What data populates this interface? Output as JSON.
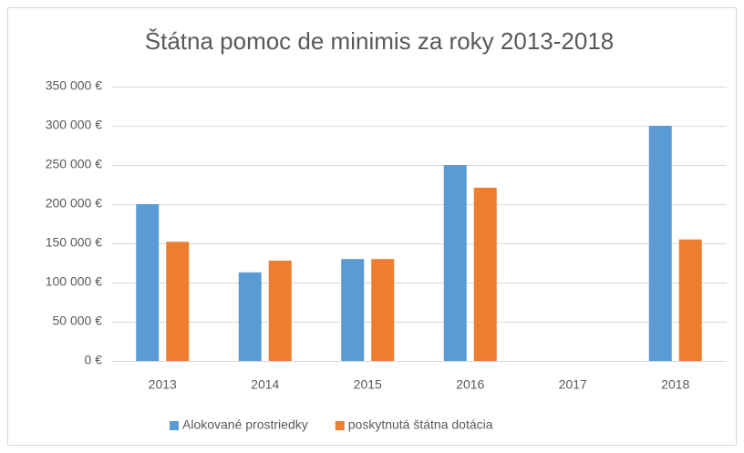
{
  "chart_data": {
    "type": "bar",
    "title": "Štátna pomoc de minimis za roky 2013-2018",
    "categories": [
      "2013",
      "2014",
      "2015",
      "2016",
      "2017",
      "2018"
    ],
    "series": [
      {
        "name": "Alokované prostriedky",
        "color": "#5b9bd5",
        "values": [
          200000,
          113000,
          130000,
          250000,
          0,
          300000
        ]
      },
      {
        "name": "poskytnutá štátna dotácia",
        "color": "#ed7d31",
        "values": [
          152000,
          128000,
          130000,
          221000,
          0,
          155000
        ]
      }
    ],
    "ylim": [
      0,
      350000
    ],
    "yticks": [
      {
        "value": 0,
        "label": "0 €"
      },
      {
        "value": 50000,
        "label": "50 000 €"
      },
      {
        "value": 100000,
        "label": "100 000 €"
      },
      {
        "value": 150000,
        "label": "150 000 €"
      },
      {
        "value": 200000,
        "label": "200 000 €"
      },
      {
        "value": 250000,
        "label": "250 000 €"
      },
      {
        "value": 300000,
        "label": "300 000 €"
      },
      {
        "value": 350000,
        "label": "350 000 €"
      }
    ],
    "grid": true,
    "legend": "bottom"
  }
}
